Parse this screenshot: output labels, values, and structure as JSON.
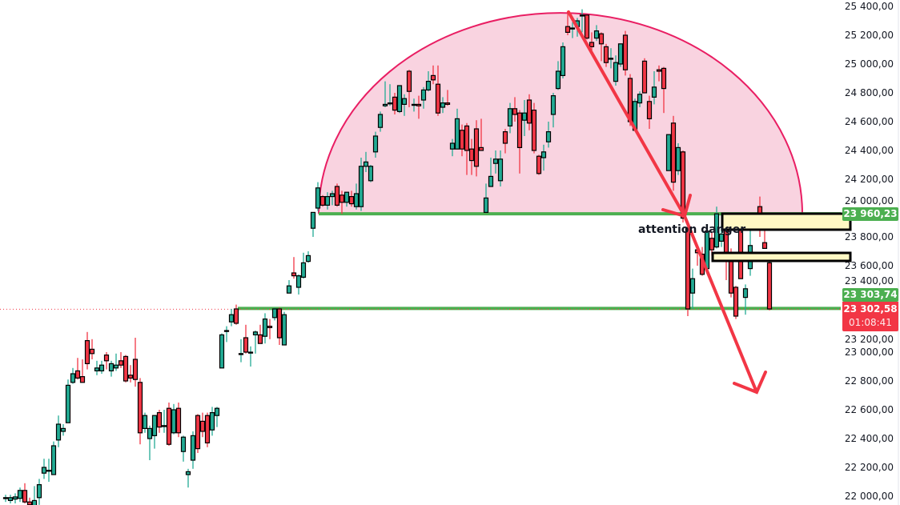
{
  "chart_data": {
    "type": "candlestick",
    "ylim": [
      22000,
      25400
    ],
    "grid": false,
    "y_ticks": [
      "25 400,00",
      "25 200,00",
      "25 000,00",
      "24 800,00",
      "24 600,00",
      "24 400,00",
      "24 200,00",
      "24 000,00",
      "23 800,00",
      "23 600,00",
      "23 400,00",
      "23 200,00",
      "23 000,00",
      "22 800,00",
      "22 600,00",
      "22 400,00",
      "22 200,00",
      "22 000,00"
    ],
    "y_tick_values": [
      25400,
      25200,
      25000,
      24800,
      24600,
      24400,
      24200,
      24000,
      23800,
      23600,
      23400,
      23200,
      23000,
      22800,
      22600,
      22400,
      22200,
      22000
    ],
    "colors": {
      "up": "#22ab94",
      "down": "#f23645",
      "support": "#4caf50",
      "arc_fill": "#f9d3e0",
      "arc_stroke": "#e91e63",
      "zone_fill": "#fff8c4",
      "arrow": "#f23645"
    },
    "candles": [
      [
        21990,
        22010,
        21960,
        21990
      ],
      [
        21970,
        22010,
        21950,
        21990
      ],
      [
        21980,
        22020,
        21950,
        21995
      ],
      [
        21985,
        22060,
        21960,
        22040
      ],
      [
        22040,
        22090,
        21950,
        21960
      ],
      [
        21960,
        21990,
        21900,
        21940
      ],
      [
        21930,
        22070,
        21880,
        21970
      ],
      [
        21990,
        22120,
        21940,
        22080
      ],
      [
        22160,
        22260,
        22120,
        22200
      ],
      [
        22180,
        22260,
        22100,
        22180
      ],
      [
        22150,
        22380,
        22150,
        22350
      ],
      [
        22390,
        22560,
        22340,
        22500
      ],
      [
        22450,
        22500,
        22420,
        22470
      ],
      [
        22510,
        22810,
        22510,
        22770
      ],
      [
        22790,
        22890,
        22780,
        22850
      ],
      [
        22870,
        22960,
        22810,
        22820
      ],
      [
        22830,
        22950,
        22790,
        22790
      ],
      [
        23080,
        23140,
        22880,
        22920
      ],
      [
        23020,
        23090,
        22950,
        22990
      ],
      [
        22870,
        22940,
        22840,
        22890
      ],
      [
        22870,
        22940,
        22850,
        22910
      ],
      [
        22980,
        23000,
        22880,
        22940
      ],
      [
        22870,
        22940,
        22830,
        22920
      ],
      [
        22890,
        22990,
        22870,
        22910
      ],
      [
        22940,
        23000,
        22890,
        22910
      ],
      [
        22970,
        22980,
        22790,
        22800
      ],
      [
        22840,
        22910,
        22790,
        22820
      ],
      [
        22950,
        23100,
        22760,
        22810
      ],
      [
        22790,
        22820,
        22360,
        22440
      ],
      [
        22470,
        22580,
        22440,
        22560
      ],
      [
        22400,
        22490,
        22250,
        22470
      ],
      [
        22420,
        22560,
        22330,
        22560
      ],
      [
        22580,
        22600,
        22440,
        22480
      ],
      [
        22490,
        22600,
        22440,
        22490
      ],
      [
        22610,
        22650,
        22350,
        22360
      ],
      [
        22440,
        22640,
        22430,
        22600
      ],
      [
        22610,
        22650,
        22410,
        22440
      ],
      [
        22310,
        22420,
        22240,
        22410
      ],
      [
        22150,
        22190,
        22060,
        22170
      ],
      [
        22250,
        22450,
        22190,
        22420
      ],
      [
        22560,
        22570,
        22300,
        22330
      ],
      [
        22520,
        22580,
        22410,
        22450
      ],
      [
        22560,
        22580,
        22340,
        22370
      ],
      [
        22460,
        22620,
        22420,
        22580
      ],
      [
        22560,
        22620,
        22480,
        22610
      ],
      [
        22890,
        23130,
        22890,
        23120
      ],
      [
        23150,
        23180,
        23070,
        23150
      ],
      [
        23210,
        23300,
        23180,
        23260
      ],
      [
        23300,
        23330,
        23190,
        23200
      ],
      [
        22990,
        23090,
        22930,
        22990
      ],
      [
        23100,
        23190,
        22990,
        23000
      ],
      [
        23000,
        23040,
        22900,
        23000
      ],
      [
        23120,
        23150,
        22990,
        23140
      ],
      [
        23120,
        23190,
        23060,
        23060
      ],
      [
        23110,
        23270,
        23060,
        23230
      ],
      [
        23180,
        23230,
        23090,
        23170
      ],
      [
        23240,
        23310,
        23220,
        23300
      ],
      [
        23300,
        23310,
        23050,
        23100
      ],
      [
        23050,
        23280,
        23050,
        23260
      ],
      [
        23410,
        23500,
        23410,
        23460
      ],
      [
        23550,
        23660,
        23510,
        23530
      ],
      [
        23450,
        23540,
        23400,
        23530
      ],
      [
        23520,
        23690,
        23510,
        23620
      ],
      [
        23630,
        23700,
        23620,
        23670
      ],
      [
        23860,
        23970,
        23800,
        23970
      ],
      [
        24000,
        24180,
        23980,
        24140
      ],
      [
        24080,
        24090,
        24010,
        24020
      ],
      [
        24020,
        24110,
        23990,
        24080
      ],
      [
        24080,
        24120,
        24020,
        24100
      ],
      [
        24150,
        24170,
        24010,
        24020
      ],
      [
        24090,
        24120,
        23960,
        24040
      ],
      [
        24040,
        24110,
        24010,
        24110
      ],
      [
        24080,
        24120,
        24010,
        24030
      ],
      [
        24010,
        24170,
        23990,
        24100
      ],
      [
        24010,
        24350,
        23980,
        24290
      ],
      [
        24290,
        24390,
        24250,
        24320
      ],
      [
        24190,
        24300,
        24180,
        24290
      ],
      [
        24390,
        24530,
        24350,
        24500
      ],
      [
        24560,
        24670,
        24530,
        24650
      ],
      [
        24710,
        24880,
        24700,
        24720
      ],
      [
        24730,
        24860,
        24710,
        24730
      ],
      [
        24770,
        24800,
        24650,
        24680
      ],
      [
        24670,
        24850,
        24660,
        24850
      ],
      [
        24720,
        24790,
        24640,
        24760
      ],
      [
        24950,
        24960,
        24700,
        24810
      ],
      [
        24720,
        24760,
        24670,
        24720
      ],
      [
        24720,
        24780,
        24620,
        24710
      ],
      [
        24750,
        24840,
        24690,
        24820
      ],
      [
        24820,
        24950,
        24810,
        24880
      ],
      [
        24920,
        24990,
        24860,
        24890
      ],
      [
        24860,
        24990,
        24640,
        24660
      ],
      [
        24700,
        24770,
        24660,
        24730
      ],
      [
        24730,
        24820,
        24710,
        24720
      ],
      [
        24410,
        24480,
        24360,
        24450
      ],
      [
        24410,
        24690,
        24410,
        24620
      ],
      [
        24540,
        24580,
        24360,
        24410
      ],
      [
        24570,
        24590,
        24230,
        24400
      ],
      [
        24410,
        24480,
        24230,
        24330
      ],
      [
        24550,
        24610,
        24220,
        24290
      ],
      [
        24420,
        24620,
        24400,
        24400
      ],
      [
        23970,
        24170,
        23970,
        24070
      ],
      [
        24150,
        24350,
        24150,
        24220
      ],
      [
        24310,
        24400,
        24240,
        24340
      ],
      [
        24190,
        24400,
        24150,
        24340
      ],
      [
        24530,
        24550,
        24380,
        24450
      ],
      [
        24570,
        24730,
        24520,
        24690
      ],
      [
        24690,
        24770,
        24600,
        24650
      ],
      [
        24660,
        24680,
        24240,
        24420
      ],
      [
        24610,
        24750,
        24500,
        24660
      ],
      [
        24750,
        24790,
        24540,
        24590
      ],
      [
        24680,
        24730,
        24380,
        24400
      ],
      [
        24360,
        24370,
        24230,
        24240
      ],
      [
        24350,
        24440,
        24260,
        24390
      ],
      [
        24460,
        24600,
        24420,
        24530
      ],
      [
        24650,
        24800,
        24560,
        24780
      ],
      [
        24830,
        25020,
        24820,
        24950
      ],
      [
        24920,
        25150,
        24900,
        25120
      ],
      [
        25260,
        25350,
        25200,
        25220
      ],
      [
        25250,
        25290,
        25180,
        25250
      ],
      [
        25260,
        25320,
        25190,
        25300
      ],
      [
        25340,
        25380,
        25220,
        25340
      ],
      [
        25340,
        25340,
        25170,
        25180
      ],
      [
        25150,
        25220,
        25080,
        25120
      ],
      [
        25180,
        25270,
        25160,
        25230
      ],
      [
        25210,
        25220,
        25020,
        25140
      ],
      [
        25120,
        25140,
        24980,
        25010
      ],
      [
        25040,
        25110,
        24970,
        25040
      ],
      [
        24880,
        25060,
        24850,
        25010
      ],
      [
        25000,
        25140,
        24980,
        25140
      ],
      [
        25200,
        25230,
        24920,
        24960
      ],
      [
        24900,
        24930,
        24570,
        24600
      ],
      [
        24540,
        24760,
        24540,
        24740
      ],
      [
        24730,
        24810,
        24700,
        24790
      ],
      [
        25020,
        25040,
        24800,
        24800
      ],
      [
        24740,
        24780,
        24550,
        24620
      ],
      [
        24770,
        24950,
        24720,
        24840
      ],
      [
        24960,
        24990,
        24880,
        24950
      ],
      [
        24970,
        24980,
        24660,
        24830
      ],
      [
        24260,
        24510,
        24260,
        24510
      ],
      [
        24590,
        24640,
        24120,
        24180
      ],
      [
        24260,
        24450,
        24230,
        24420
      ],
      [
        24390,
        24400,
        23900,
        23930
      ],
      [
        23860,
        23870,
        23250,
        23300
      ],
      [
        23410,
        23580,
        23300,
        23510
      ],
      [
        23710,
        23720,
        23600,
        23690
      ],
      [
        23680,
        23730,
        23530,
        23540
      ],
      [
        23580,
        23880,
        23560,
        23840
      ],
      [
        23790,
        23830,
        23670,
        23710
      ],
      [
        23730,
        24010,
        23720,
        23960
      ],
      [
        23770,
        23880,
        23730,
        23820
      ],
      [
        23950,
        23960,
        23500,
        23650
      ],
      [
        23690,
        23720,
        23380,
        23410
      ],
      [
        23450,
        23460,
        23230,
        23250
      ],
      [
        23860,
        23940,
        23510,
        23510
      ],
      [
        23380,
        23470,
        23260,
        23440
      ],
      [
        23580,
        23860,
        23530,
        23740
      ],
      [
        23880,
        23960,
        23860,
        23930
      ],
      [
        24010,
        24080,
        23800,
        23870
      ],
      [
        23760,
        23930,
        23720,
        23720
      ],
      [
        23620,
        23630,
        23290,
        23300
      ]
    ],
    "levels": [
      23960.23,
      23303.74
    ],
    "annotations": [
      {
        "text": "attention danger"
      }
    ],
    "price_tags": {
      "level_high": "23 960,23",
      "level_low": "23 303,74",
      "last_price": "23 302,58",
      "countdown": "01:08:41"
    }
  }
}
